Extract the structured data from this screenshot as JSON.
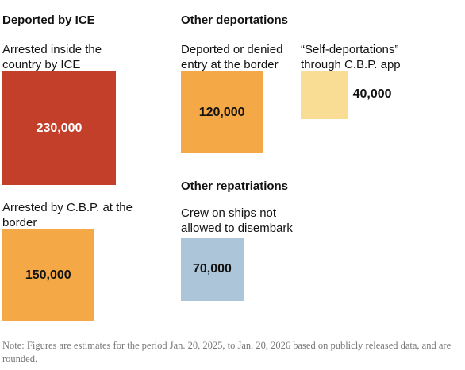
{
  "chart_data": {
    "type": "square-area",
    "groups": [
      {
        "title": "Deported by ICE",
        "items": [
          {
            "label": "Arrested inside the country by ICE",
            "value": 230000,
            "value_label": "230,000",
            "color": "#c43f29"
          },
          {
            "label": "Arrested by C.B.P. at the border",
            "value": 150000,
            "value_label": "150,000",
            "color": "#f4a946"
          }
        ]
      },
      {
        "title": "Other deportations",
        "items": [
          {
            "label": "Deported or denied entry at the border",
            "value": 120000,
            "value_label": "120,000",
            "color": "#f4a946"
          },
          {
            "label": "“Self-deportations” through C.B.P. app",
            "value": 40000,
            "value_label": "40,000",
            "color": "#f9dd95"
          }
        ]
      },
      {
        "title": "Other repatriations",
        "items": [
          {
            "label": "Crew on ships not allowed to disembark",
            "value": 70000,
            "value_label": "70,000",
            "color": "#adc5d8"
          }
        ]
      }
    ],
    "note": "Note: Figures are estimates for the period Jan. 20, 2025, to Jan. 20, 2026 based on publicly released data, and are rounded."
  }
}
